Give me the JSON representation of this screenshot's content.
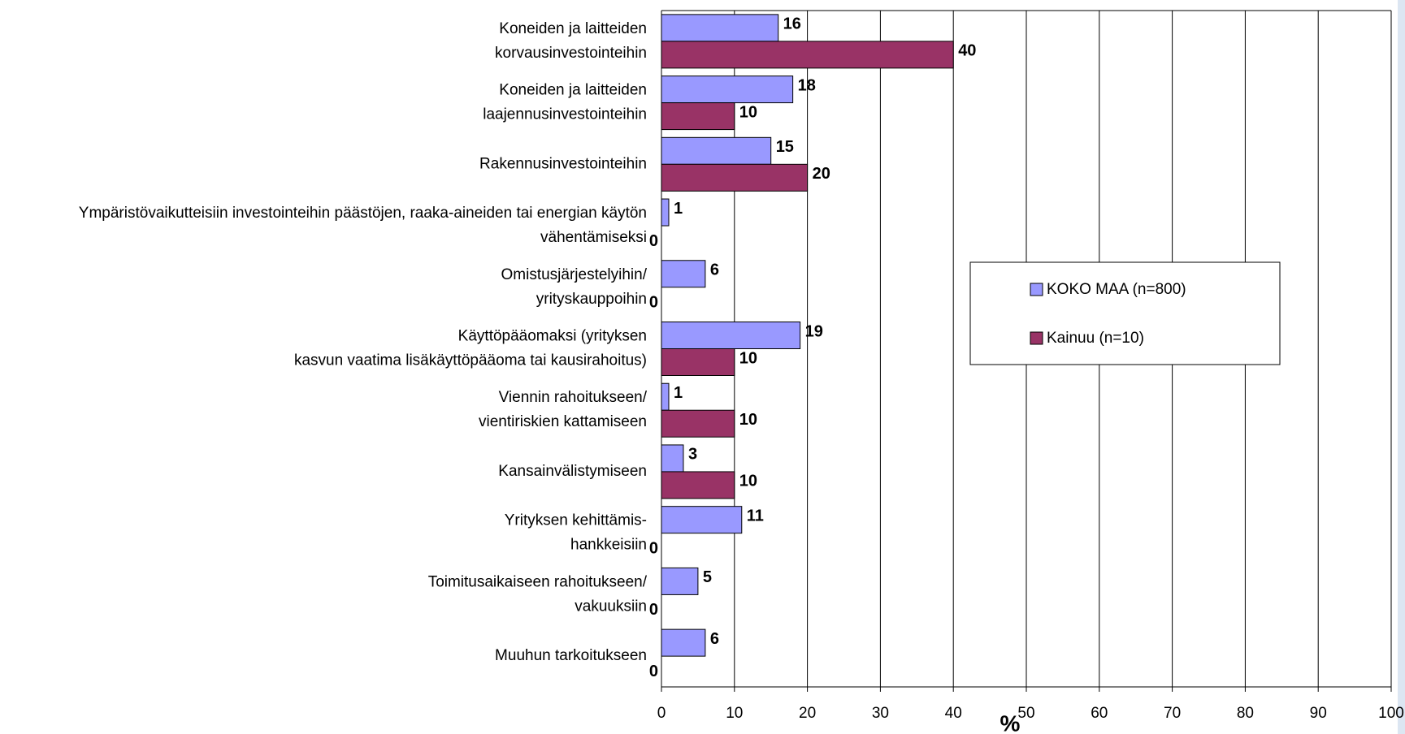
{
  "chart_data": {
    "type": "hbar",
    "categories": [
      [
        "Koneiden ja laitteiden",
        "korvausinvestointeihin"
      ],
      [
        "Koneiden ja laitteiden",
        "laajennusinvestointeihin"
      ],
      [
        "Rakennusinvestointeihin"
      ],
      [
        "Ympäristövaikutteisiin investointeihin päästöjen, raaka-aineiden tai energian käytön",
        "vähentämiseksi"
      ],
      [
        "Omistusjärjestelyihin/",
        "yrityskauppoihin"
      ],
      [
        "Käyttöpääomaksi (yrityksen",
        "kasvun vaatima lisäkäyttöpääoma tai kausirahoitus)"
      ],
      [
        "Viennin rahoitukseen/",
        "vientiriskien kattamiseen"
      ],
      [
        "Kansainvälistymiseen"
      ],
      [
        "Yrityksen kehittämis-",
        "hankkeisiin"
      ],
      [
        "Toimitusaikaiseen rahoitukseen/",
        "vakuuksiin"
      ],
      [
        "Muuhun tarkoitukseen"
      ]
    ],
    "series": [
      {
        "name": "KOKO MAA (n=800)",
        "color": "#9999ff",
        "values": [
          16,
          18,
          15,
          1,
          6,
          19,
          1,
          3,
          11,
          5,
          6
        ]
      },
      {
        "name": "Kainuu (n=10)",
        "color": "#993366",
        "values": [
          40,
          10,
          20,
          0,
          0,
          10,
          10,
          10,
          0,
          0,
          0
        ]
      }
    ],
    "xlabel": "%",
    "xlim": [
      0,
      100
    ],
    "xticks": [
      0,
      10,
      20,
      30,
      40,
      50,
      60,
      70,
      80,
      90,
      100
    ],
    "grid": true
  }
}
